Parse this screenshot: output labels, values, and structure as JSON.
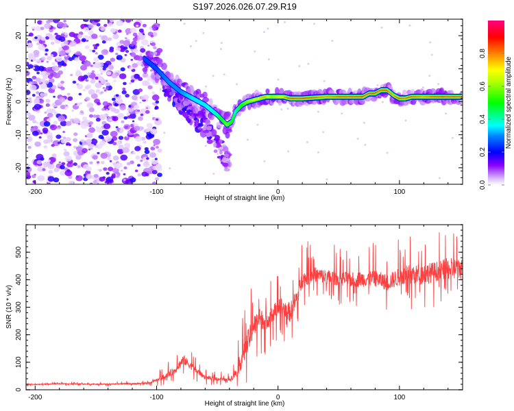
{
  "figure_title": "S197.2026.026.07.29.R19",
  "chart_data": [
    {
      "type": "heatmap",
      "title": "",
      "xlabel": "Height of straight line (km)",
      "ylabel": "Frequency (Hz)",
      "xlim": [
        -207.5,
        152
      ],
      "ylim": [
        -25,
        25
      ],
      "xticks": [
        -200,
        -100,
        0,
        100
      ],
      "xtick_labels": [
        "-200",
        "-100",
        "0",
        "100"
      ],
      "yticks": [
        -20,
        -10,
        0,
        10,
        20
      ],
      "ytick_labels": [
        "-20",
        "-10",
        "0",
        "10",
        "20"
      ],
      "colorbar": {
        "label": "Normalized spectral amplitude",
        "range": [
          0,
          1
        ],
        "ticks": [
          0.0,
          0.2,
          0.4,
          0.6,
          0.8
        ],
        "tick_labels": [
          "0.0",
          "0.2",
          "0.4",
          "0.6",
          "0.8"
        ],
        "colormap": [
          "#ffffff",
          "#d9b8ff",
          "#7a00ff",
          "#0000ff",
          "#00ffff",
          "#00ff00",
          "#ffff00",
          "#ff8000",
          "#ff0000",
          "#ff007f"
        ]
      },
      "ridge": {
        "description": "dominant frequency track",
        "x": [
          -110,
          -100,
          -90,
          -80,
          -70,
          -60,
          -50,
          -42,
          -38,
          -35,
          -30,
          -25,
          -20,
          -15,
          -10,
          -5,
          0,
          5,
          10,
          20,
          40,
          60,
          70,
          75,
          80,
          85,
          90,
          95,
          100,
          105,
          110,
          120,
          130,
          140,
          152
        ],
        "y": [
          13,
          10,
          6,
          3,
          1,
          -1,
          -4,
          -7,
          -6,
          -3,
          -1,
          0,
          0.5,
          1,
          1.5,
          1.5,
          1.5,
          1.5,
          1,
          1,
          1.5,
          1.5,
          1.5,
          2.5,
          2.5,
          3.5,
          3.5,
          2,
          1,
          1,
          1.5,
          1.5,
          1.5,
          1.5,
          1.5
        ],
        "amplitude": [
          0.25,
          0.25,
          0.3,
          0.3,
          0.35,
          0.35,
          0.4,
          0.6,
          0.5,
          0.4,
          0.5,
          0.6,
          0.7,
          0.75,
          0.8,
          0.6,
          0.7,
          0.75,
          0.95,
          0.95,
          0.8,
          0.95,
          0.9,
          0.95,
          0.9,
          0.95,
          0.9,
          0.8,
          0.9,
          0.85,
          0.9,
          0.8,
          0.9,
          0.95,
          0.95
        ]
      },
      "secondary_branch": {
        "x": [
          -95,
          -85,
          -75,
          -65,
          -55,
          -50,
          -45,
          -40
        ],
        "y": [
          6,
          2,
          -2,
          -6,
          -10,
          -13,
          -16,
          -19
        ],
        "amplitude": [
          0.2,
          0.2,
          0.15,
          0.15,
          0.15,
          0.12,
          0.12,
          0.08
        ]
      },
      "noise_region": {
        "x": [
          -207.5,
          -105
        ],
        "amplitude_range": [
          0.02,
          0.2
        ]
      }
    },
    {
      "type": "line",
      "title": "",
      "xlabel": "Height of straight line (km)",
      "ylabel": "SNR (10 * v/v)",
      "xlim": [
        -207.5,
        152
      ],
      "ylim": [
        0,
        600
      ],
      "xticks": [
        -200,
        -100,
        0,
        100
      ],
      "xtick_labels": [
        "-200",
        "-100",
        "0",
        "100"
      ],
      "yticks": [
        0,
        100,
        200,
        300,
        400,
        500
      ],
      "ytick_labels": [
        "0",
        "100",
        "200",
        "300",
        "400",
        "500"
      ],
      "series": [
        {
          "name": "SNR",
          "color": "#ff2a2a",
          "baseline_x": [
            -207.5,
            -180,
            -150,
            -120,
            -105,
            -95,
            -85,
            -78,
            -70,
            -60,
            -50,
            -40,
            -35,
            -30,
            -25,
            -20,
            -15,
            -10,
            -5,
            0,
            5,
            10,
            15,
            20,
            30,
            40,
            60,
            80,
            90,
            100,
            110,
            120,
            130,
            140,
            152
          ],
          "baseline_y": [
            18,
            22,
            20,
            22,
            25,
            45,
            70,
            110,
            80,
            45,
            40,
            35,
            60,
            110,
            170,
            230,
            260,
            250,
            270,
            300,
            300,
            280,
            330,
            400,
            420,
            410,
            400,
            405,
            390,
            410,
            420,
            420,
            430,
            440,
            440
          ],
          "spike_amplitude": [
            4,
            6,
            6,
            8,
            10,
            30,
            40,
            60,
            40,
            25,
            20,
            20,
            60,
            120,
            150,
            130,
            120,
            110,
            110,
            100,
            110,
            120,
            120,
            100,
            90,
            90,
            90,
            100,
            100,
            110,
            130,
            130,
            120,
            130,
            130
          ]
        }
      ]
    }
  ]
}
